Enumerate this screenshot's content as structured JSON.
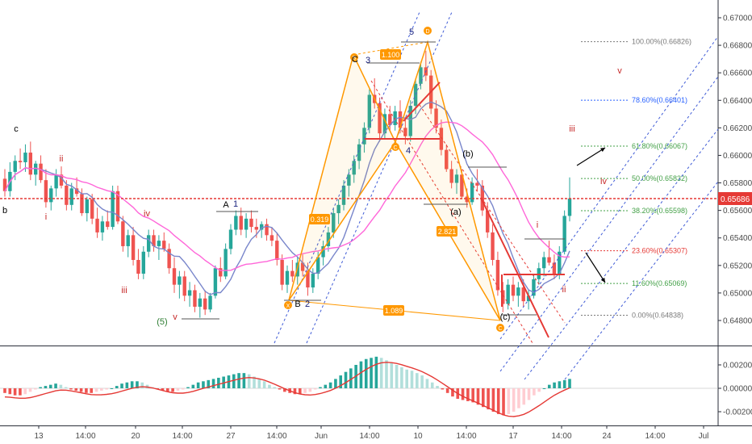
{
  "chart_data": {
    "type": "candlestick",
    "price_axis": {
      "range": [
        0.6468,
        0.671
      ],
      "ticks": [
        "0.67000",
        "0.66800",
        "0.66600",
        "0.66400",
        "0.66200",
        "0.66000",
        "0.65800",
        "0.65600",
        "0.65400",
        "0.65200",
        "0.65000",
        "0.64800"
      ],
      "current_price": "0.65686",
      "current_color": "#e53935"
    },
    "time_axis": {
      "ticks": [
        "13",
        "14:00",
        "20",
        "14:00",
        "27",
        "14:00",
        "Jun",
        "14:00",
        "10",
        "14:00",
        "17",
        "14:00",
        "24",
        "14:00",
        "Jul"
      ]
    },
    "macd_axis": {
      "range": [
        -0.0028,
        0.003
      ],
      "ticks": [
        "0.00200",
        "0.00000",
        "-0.00200"
      ]
    },
    "fib_levels": [
      {
        "label": "100.00%(0.66826)",
        "value": 0.66826,
        "color": "#7a7a7a"
      },
      {
        "label": "78.60%(0.66401)",
        "value": 0.66401,
        "color": "#2962ff"
      },
      {
        "label": "61.80%(0.66067)",
        "value": 0.66067,
        "color": "#43a047"
      },
      {
        "label": "50.00%(0.65832)",
        "value": 0.65832,
        "color": "#43a047"
      },
      {
        "label": "38.20%(0.65598)",
        "value": 0.65598,
        "color": "#43a047"
      },
      {
        "label": "23.60%(0.65307)",
        "value": 0.65307,
        "color": "#e53935"
      },
      {
        "label": "11.60%(0.65069)",
        "value": 0.65069,
        "color": "#43a047"
      },
      {
        "label": "0.00%(0.64838)",
        "value": 0.64838,
        "color": "#7a7a7a"
      }
    ],
    "harmonic_ratios": [
      "1.100",
      "0.319",
      "2.821",
      "1.089"
    ],
    "harmonic_points": [
      "X",
      "B",
      "C",
      "D",
      "C"
    ],
    "wave_labels": [
      {
        "text": "c",
        "color": "#000000"
      },
      {
        "text": "b",
        "color": "#000000"
      },
      {
        "text": "ii",
        "color": "#c62828"
      },
      {
        "text": "i",
        "color": "#c62828"
      },
      {
        "text": "iv",
        "color": "#c62828"
      },
      {
        "text": "iii",
        "color": "#c62828"
      },
      {
        "text": "(5)",
        "color": "#2e7d32"
      },
      {
        "text": "v",
        "color": "#c62828"
      },
      {
        "text": "A",
        "color": "#000000"
      },
      {
        "text": "1",
        "color": "#1a237e"
      },
      {
        "text": "B",
        "color": "#000000"
      },
      {
        "text": "2",
        "color": "#1a237e"
      },
      {
        "text": "C",
        "color": "#000000"
      },
      {
        "text": "3",
        "color": "#1a237e"
      },
      {
        "text": "4",
        "color": "#1a237e"
      },
      {
        "text": "5",
        "color": "#1a237e"
      },
      {
        "text": "(a)",
        "color": "#000000"
      },
      {
        "text": "(b)",
        "color": "#000000"
      },
      {
        "text": "(c)",
        "color": "#000000"
      },
      {
        "text": "i",
        "color": "#c62828"
      },
      {
        "text": "ii",
        "color": "#c62828"
      },
      {
        "text": "iii",
        "color": "#c62828"
      },
      {
        "text": "iv",
        "color": "#c62828"
      },
      {
        "text": "v",
        "color": "#c62828"
      }
    ],
    "candles": [
      [
        0.6583,
        0.659,
        0.657,
        0.6574
      ],
      [
        0.6574,
        0.6595,
        0.657,
        0.6588
      ],
      [
        0.6588,
        0.66,
        0.6582,
        0.6596
      ],
      [
        0.6596,
        0.6605,
        0.659,
        0.6595
      ],
      [
        0.6595,
        0.6608,
        0.6588,
        0.6602
      ],
      [
        0.6602,
        0.661,
        0.6582,
        0.6586
      ],
      [
        0.6586,
        0.6596,
        0.6578,
        0.6594
      ],
      [
        0.6594,
        0.66,
        0.658,
        0.6582
      ],
      [
        0.6582,
        0.659,
        0.6562,
        0.6566
      ],
      [
        0.6566,
        0.6578,
        0.656,
        0.6576
      ],
      [
        0.6576,
        0.659,
        0.657,
        0.6586
      ],
      [
        0.6586,
        0.6592,
        0.6576,
        0.6578
      ],
      [
        0.6578,
        0.6582,
        0.656,
        0.6564
      ],
      [
        0.6564,
        0.658,
        0.656,
        0.6576
      ],
      [
        0.6576,
        0.6584,
        0.657,
        0.6572
      ],
      [
        0.6572,
        0.6576,
        0.6556,
        0.6558
      ],
      [
        0.6558,
        0.657,
        0.6552,
        0.6568
      ],
      [
        0.6568,
        0.6572,
        0.655,
        0.6554
      ],
      [
        0.6554,
        0.6562,
        0.654,
        0.6544
      ],
      [
        0.6544,
        0.6556,
        0.6538,
        0.6552
      ],
      [
        0.6552,
        0.656,
        0.6546,
        0.6548
      ],
      [
        0.6548,
        0.6578,
        0.6546,
        0.6574
      ],
      [
        0.6574,
        0.6578,
        0.655,
        0.6552
      ],
      [
        0.6552,
        0.6556,
        0.653,
        0.6534
      ],
      [
        0.6534,
        0.6546,
        0.6526,
        0.6542
      ],
      [
        0.6542,
        0.6548,
        0.652,
        0.6524
      ],
      [
        0.6524,
        0.6532,
        0.651,
        0.6514
      ],
      [
        0.6514,
        0.6534,
        0.651,
        0.653
      ],
      [
        0.653,
        0.6546,
        0.6526,
        0.6542
      ],
      [
        0.6542,
        0.6546,
        0.653,
        0.6534
      ],
      [
        0.6534,
        0.6542,
        0.6524,
        0.6538
      ],
      [
        0.6538,
        0.6544,
        0.653,
        0.6532
      ],
      [
        0.6532,
        0.6536,
        0.6514,
        0.6518
      ],
      [
        0.6518,
        0.6526,
        0.65,
        0.6506
      ],
      [
        0.6506,
        0.6516,
        0.6496,
        0.6512
      ],
      [
        0.6512,
        0.6516,
        0.6494,
        0.6498
      ],
      [
        0.6498,
        0.6508,
        0.649,
        0.6502
      ],
      [
        0.6502,
        0.6506,
        0.6486,
        0.649
      ],
      [
        0.649,
        0.65,
        0.6482,
        0.6496
      ],
      [
        0.6496,
        0.6502,
        0.6484,
        0.6488
      ],
      [
        0.6488,
        0.65,
        0.6486,
        0.6498
      ],
      [
        0.6498,
        0.652,
        0.6496,
        0.6518
      ],
      [
        0.6518,
        0.6526,
        0.6508,
        0.6512
      ],
      [
        0.6512,
        0.6536,
        0.651,
        0.6532
      ],
      [
        0.6532,
        0.655,
        0.6528,
        0.6546
      ],
      [
        0.6546,
        0.656,
        0.6542,
        0.6556
      ],
      [
        0.6556,
        0.6562,
        0.6542,
        0.6546
      ],
      [
        0.6546,
        0.6558,
        0.654,
        0.6554
      ],
      [
        0.6554,
        0.656,
        0.6544,
        0.6548
      ],
      [
        0.6548,
        0.6554,
        0.654,
        0.6546
      ],
      [
        0.6546,
        0.6552,
        0.654,
        0.655
      ],
      [
        0.655,
        0.6554,
        0.6538,
        0.6542
      ],
      [
        0.6542,
        0.6548,
        0.6534,
        0.6538
      ],
      [
        0.6538,
        0.6544,
        0.652,
        0.6524
      ],
      [
        0.6524,
        0.6528,
        0.6502,
        0.6506
      ],
      [
        0.6506,
        0.652,
        0.65,
        0.6516
      ],
      [
        0.6516,
        0.6524,
        0.6508,
        0.6512
      ],
      [
        0.6512,
        0.6526,
        0.6506,
        0.6522
      ],
      [
        0.6522,
        0.6528,
        0.6512,
        0.6516
      ],
      [
        0.6516,
        0.6522,
        0.6498,
        0.6504
      ],
      [
        0.6504,
        0.6518,
        0.65,
        0.6514
      ],
      [
        0.6514,
        0.653,
        0.651,
        0.6526
      ],
      [
        0.6526,
        0.6538,
        0.652,
        0.6534
      ],
      [
        0.6534,
        0.6548,
        0.653,
        0.6544
      ],
      [
        0.6544,
        0.6562,
        0.654,
        0.6558
      ],
      [
        0.6558,
        0.6568,
        0.655,
        0.6564
      ],
      [
        0.6564,
        0.6582,
        0.656,
        0.6578
      ],
      [
        0.6578,
        0.659,
        0.657,
        0.6586
      ],
      [
        0.6586,
        0.66,
        0.658,
        0.6596
      ],
      [
        0.6596,
        0.6612,
        0.659,
        0.6608
      ],
      [
        0.6608,
        0.6624,
        0.6602,
        0.662
      ],
      [
        0.662,
        0.6648,
        0.6616,
        0.6644
      ],
      [
        0.6644,
        0.6656,
        0.6634,
        0.6638
      ],
      [
        0.6638,
        0.6642,
        0.661,
        0.6616
      ],
      [
        0.6616,
        0.6634,
        0.6612,
        0.663
      ],
      [
        0.663,
        0.6636,
        0.6618,
        0.6622
      ],
      [
        0.6622,
        0.6636,
        0.6618,
        0.6632
      ],
      [
        0.6632,
        0.664,
        0.6616,
        0.662
      ],
      [
        0.662,
        0.6628,
        0.6608,
        0.6614
      ],
      [
        0.6614,
        0.664,
        0.661,
        0.6636
      ],
      [
        0.6636,
        0.6656,
        0.663,
        0.6652
      ],
      [
        0.6652,
        0.6668,
        0.6648,
        0.6664
      ],
      [
        0.6664,
        0.6676,
        0.6654,
        0.6658
      ],
      [
        0.6658,
        0.6662,
        0.663,
        0.6634
      ],
      [
        0.6634,
        0.664,
        0.6616,
        0.662
      ],
      [
        0.662,
        0.6626,
        0.66,
        0.6604
      ],
      [
        0.6604,
        0.6608,
        0.6588,
        0.659
      ],
      [
        0.659,
        0.6596,
        0.6576,
        0.658
      ],
      [
        0.658,
        0.659,
        0.6572,
        0.6586
      ],
      [
        0.6586,
        0.659,
        0.6568,
        0.657
      ],
      [
        0.657,
        0.6576,
        0.6562,
        0.6566
      ],
      [
        0.6566,
        0.6584,
        0.6564,
        0.658
      ],
      [
        0.658,
        0.659,
        0.6574,
        0.6578
      ],
      [
        0.6578,
        0.6582,
        0.6556,
        0.656
      ],
      [
        0.656,
        0.6566,
        0.654,
        0.6544
      ],
      [
        0.6544,
        0.655,
        0.652,
        0.6524
      ],
      [
        0.6524,
        0.653,
        0.6498,
        0.6502
      ],
      [
        0.6502,
        0.6508,
        0.6486,
        0.6492
      ],
      [
        0.6492,
        0.651,
        0.6488,
        0.6506
      ],
      [
        0.6506,
        0.6512,
        0.6494,
        0.6498
      ],
      [
        0.6498,
        0.6508,
        0.649,
        0.6504
      ],
      [
        0.6504,
        0.651,
        0.649,
        0.6494
      ],
      [
        0.6494,
        0.6502,
        0.6488,
        0.6498
      ],
      [
        0.6498,
        0.6514,
        0.6496,
        0.651
      ],
      [
        0.651,
        0.6522,
        0.6506,
        0.6518
      ],
      [
        0.6518,
        0.653,
        0.6512,
        0.6526
      ],
      [
        0.6526,
        0.6538,
        0.652,
        0.6522
      ],
      [
        0.6522,
        0.6528,
        0.651,
        0.6514
      ],
      [
        0.6514,
        0.6534,
        0.651,
        0.653
      ],
      [
        0.653,
        0.656,
        0.6528,
        0.6556
      ],
      [
        0.6556,
        0.6584,
        0.6552,
        0.65686
      ]
    ],
    "macd_hist": [
      -0.0004,
      -0.0005,
      -0.0006,
      -0.0006,
      -0.0005,
      -0.0003,
      -0.0001,
      0.0001,
      0.0002,
      0.0003,
      0.0004,
      0.0003,
      0.0001,
      -0.0001,
      -0.0002,
      -0.0003,
      -0.0004,
      -0.0004,
      -0.0003,
      -0.0002,
      -0.0001,
      0.0,
      0.0002,
      0.0004,
      0.0005,
      0.0006,
      0.0006,
      0.0005,
      0.0003,
      0.0001,
      -0.0001,
      -0.0002,
      -0.0003,
      -0.0003,
      -0.0002,
      -0.0001,
      0.0001,
      0.0003,
      0.0005,
      0.0006,
      0.0007,
      0.0008,
      0.0009,
      0.001,
      0.0011,
      0.0012,
      0.0013,
      0.0013,
      0.0012,
      0.001,
      0.0008,
      0.0006,
      0.0003,
      0.0001,
      -0.0001,
      -0.0003,
      -0.0004,
      -0.0005,
      -0.0005,
      -0.0004,
      -0.0003,
      -0.0001,
      0.0001,
      0.0003,
      0.0005,
      0.0008,
      0.0011,
      0.0014,
      0.0017,
      0.002,
      0.0023,
      0.0025,
      0.0026,
      0.0027,
      0.0026,
      0.0024,
      0.0022,
      0.002,
      0.0018,
      0.0016,
      0.0015,
      0.0013,
      0.0011,
      0.0008,
      0.0005,
      0.0002,
      -0.0001,
      -0.0004,
      -0.0007,
      -0.0009,
      -0.001,
      -0.0011,
      -0.0012,
      -0.0014,
      -0.0016,
      -0.0018,
      -0.002,
      -0.0022,
      -0.0023,
      -0.0022,
      -0.002,
      -0.0017,
      -0.0014,
      -0.001,
      -0.0006,
      -0.0003,
      0.0,
      0.0003,
      0.0005,
      0.0006,
      0.0007,
      0.0008
    ]
  }
}
